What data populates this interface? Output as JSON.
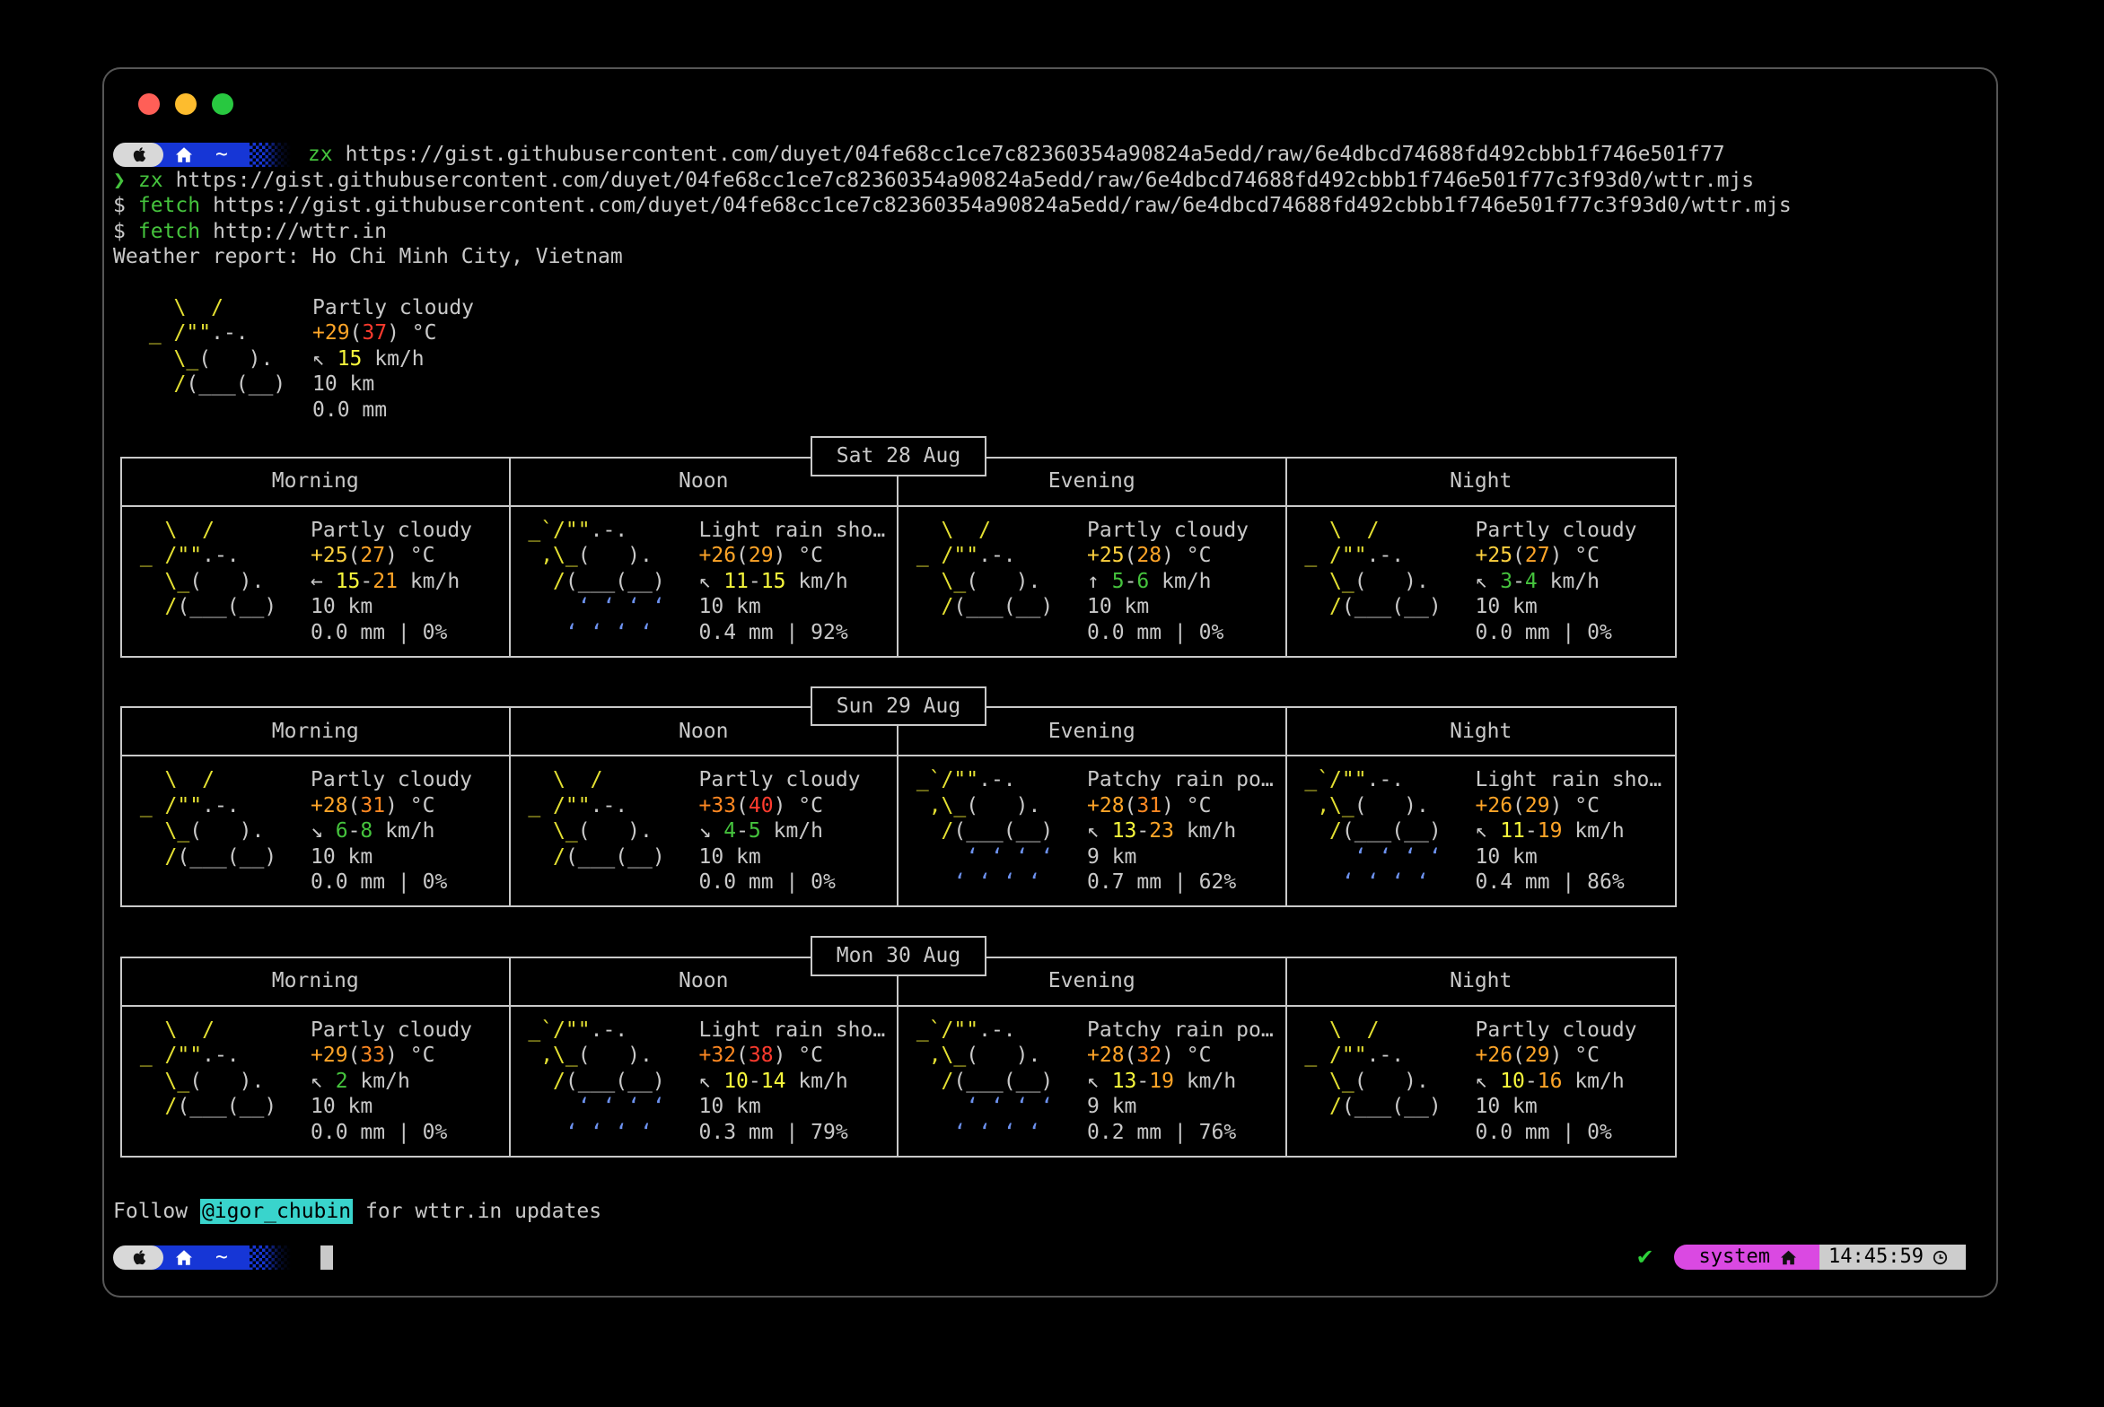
{
  "window": {
    "traffic_lights": [
      "close",
      "minimize",
      "zoom"
    ]
  },
  "prompt_bar": {
    "path_symbol": "~"
  },
  "commands": {
    "line1": {
      "cmd": "zx",
      "url": "https://gist.githubusercontent.com/duyet/04fe68cc1ce7c82360354a90824a5edd/raw/6e4dbcd74688fd492cbbb1f746e501f77"
    },
    "line2": {
      "prompt": "❯",
      "cmd": "zx",
      "url": "https://gist.githubusercontent.com/duyet/04fe68cc1ce7c82360354a90824a5edd/raw/6e4dbcd74688fd492cbbb1f746e501f77c3f93d0/wttr.mjs"
    },
    "line3": {
      "prompt": "$",
      "cmd": "fetch",
      "url": "https://gist.githubusercontent.com/duyet/04fe68cc1ce7c82360354a90824a5edd/raw/6e4dbcd74688fd492cbbb1f746e501f77c3f93d0/wttr.mjs"
    },
    "line4": {
      "prompt": "$",
      "cmd": "fetch",
      "url": "http://wttr.in"
    }
  },
  "report": {
    "header": "Weather report: Ho Chi Minh City, Vietnam",
    "current": {
      "art": "partly_cloudy",
      "condition": "Partly cloudy",
      "temp": [
        {
          "t": "+29",
          "c": "o"
        },
        {
          "t": "(",
          "c": "w"
        },
        {
          "t": "37",
          "c": "r"
        },
        {
          "t": ") °C",
          "c": "w"
        }
      ],
      "wind": [
        {
          "t": "↖ ",
          "c": "w"
        },
        {
          "t": "15",
          "c": "by"
        },
        {
          "t": " km/h",
          "c": "w"
        }
      ],
      "visibility": "10 km",
      "precip": "0.0 mm"
    },
    "periods": [
      "Morning",
      "Noon",
      "Evening",
      "Night"
    ],
    "days": [
      {
        "date": "Sat 28 Aug",
        "cells": [
          {
            "art": "partly_cloudy",
            "condition": "Partly cloudy",
            "temp": [
              {
                "t": "+25",
                "c": "gold"
              },
              {
                "t": "(",
                "c": "w"
              },
              {
                "t": "27",
                "c": "o"
              },
              {
                "t": ") °C",
                "c": "w"
              }
            ],
            "wind": [
              {
                "t": "← ",
                "c": "w"
              },
              {
                "t": "15",
                "c": "by"
              },
              {
                "t": "-",
                "c": "w"
              },
              {
                "t": "21",
                "c": "o"
              },
              {
                "t": " km/h",
                "c": "w"
              }
            ],
            "visibility": "10 km",
            "precip": "0.0 mm | 0%"
          },
          {
            "art": "rain_shower",
            "condition": "Light rain sho…",
            "temp": [
              {
                "t": "+26",
                "c": "o"
              },
              {
                "t": "(",
                "c": "w"
              },
              {
                "t": "29",
                "c": "o"
              },
              {
                "t": ") °C",
                "c": "w"
              }
            ],
            "wind": [
              {
                "t": "↖ ",
                "c": "w"
              },
              {
                "t": "11",
                "c": "by"
              },
              {
                "t": "-",
                "c": "w"
              },
              {
                "t": "15",
                "c": "by"
              },
              {
                "t": " km/h",
                "c": "w"
              }
            ],
            "visibility": "10 km",
            "precip": "0.4 mm | 92%"
          },
          {
            "art": "partly_cloudy",
            "condition": "Partly cloudy",
            "temp": [
              {
                "t": "+25",
                "c": "gold"
              },
              {
                "t": "(",
                "c": "w"
              },
              {
                "t": "28",
                "c": "o"
              },
              {
                "t": ") °C",
                "c": "w"
              }
            ],
            "wind": [
              {
                "t": "↑ ",
                "c": "w"
              },
              {
                "t": "5",
                "c": "g"
              },
              {
                "t": "-",
                "c": "w"
              },
              {
                "t": "6",
                "c": "g"
              },
              {
                "t": " km/h",
                "c": "w"
              }
            ],
            "visibility": "10 km",
            "precip": "0.0 mm | 0%"
          },
          {
            "art": "partly_cloudy",
            "condition": "Partly cloudy",
            "temp": [
              {
                "t": "+25",
                "c": "gold"
              },
              {
                "t": "(",
                "c": "w"
              },
              {
                "t": "27",
                "c": "o"
              },
              {
                "t": ") °C",
                "c": "w"
              }
            ],
            "wind": [
              {
                "t": "↖ ",
                "c": "w"
              },
              {
                "t": "3",
                "c": "g"
              },
              {
                "t": "-",
                "c": "w"
              },
              {
                "t": "4",
                "c": "g"
              },
              {
                "t": " km/h",
                "c": "w"
              }
            ],
            "visibility": "10 km",
            "precip": "0.0 mm | 0%"
          }
        ]
      },
      {
        "date": "Sun 29 Aug",
        "cells": [
          {
            "art": "partly_cloudy",
            "condition": "Partly cloudy",
            "temp": [
              {
                "t": "+28",
                "c": "o"
              },
              {
                "t": "(",
                "c": "w"
              },
              {
                "t": "31",
                "c": "do"
              },
              {
                "t": ") °C",
                "c": "w"
              }
            ],
            "wind": [
              {
                "t": "↘ ",
                "c": "w"
              },
              {
                "t": "6",
                "c": "g"
              },
              {
                "t": "-",
                "c": "w"
              },
              {
                "t": "8",
                "c": "g"
              },
              {
                "t": " km/h",
                "c": "w"
              }
            ],
            "visibility": "10 km",
            "precip": "0.0 mm | 0%"
          },
          {
            "art": "partly_cloudy",
            "condition": "Partly cloudy",
            "temp": [
              {
                "t": "+33",
                "c": "do"
              },
              {
                "t": "(",
                "c": "w"
              },
              {
                "t": "40",
                "c": "r"
              },
              {
                "t": ") °C",
                "c": "w"
              }
            ],
            "wind": [
              {
                "t": "↘ ",
                "c": "w"
              },
              {
                "t": "4",
                "c": "g"
              },
              {
                "t": "-",
                "c": "w"
              },
              {
                "t": "5",
                "c": "g"
              },
              {
                "t": " km/h",
                "c": "w"
              }
            ],
            "visibility": "10 km",
            "precip": "0.0 mm | 0%"
          },
          {
            "art": "rain_shower",
            "condition": "Patchy rain po…",
            "temp": [
              {
                "t": "+28",
                "c": "o"
              },
              {
                "t": "(",
                "c": "w"
              },
              {
                "t": "31",
                "c": "do"
              },
              {
                "t": ") °C",
                "c": "w"
              }
            ],
            "wind": [
              {
                "t": "↖ ",
                "c": "w"
              },
              {
                "t": "13",
                "c": "by"
              },
              {
                "t": "-",
                "c": "w"
              },
              {
                "t": "23",
                "c": "o"
              },
              {
                "t": " km/h",
                "c": "w"
              }
            ],
            "visibility": "9 km",
            "precip": "0.7 mm | 62%"
          },
          {
            "art": "rain_shower",
            "condition": "Light rain sho…",
            "temp": [
              {
                "t": "+26",
                "c": "o"
              },
              {
                "t": "(",
                "c": "w"
              },
              {
                "t": "29",
                "c": "o"
              },
              {
                "t": ") °C",
                "c": "w"
              }
            ],
            "wind": [
              {
                "t": "↖ ",
                "c": "w"
              },
              {
                "t": "11",
                "c": "by"
              },
              {
                "t": "-",
                "c": "w"
              },
              {
                "t": "19",
                "c": "o"
              },
              {
                "t": " km/h",
                "c": "w"
              }
            ],
            "visibility": "10 km",
            "precip": "0.4 mm | 86%"
          }
        ]
      },
      {
        "date": "Mon 30 Aug",
        "cells": [
          {
            "art": "partly_cloudy",
            "condition": "Partly cloudy",
            "temp": [
              {
                "t": "+29",
                "c": "o"
              },
              {
                "t": "(",
                "c": "w"
              },
              {
                "t": "33",
                "c": "do"
              },
              {
                "t": ") °C",
                "c": "w"
              }
            ],
            "wind": [
              {
                "t": "↖ ",
                "c": "w"
              },
              {
                "t": "2",
                "c": "g"
              },
              {
                "t": " km/h",
                "c": "w"
              }
            ],
            "visibility": "10 km",
            "precip": "0.0 mm | 0%"
          },
          {
            "art": "rain_shower",
            "condition": "Light rain sho…",
            "temp": [
              {
                "t": "+32",
                "c": "do"
              },
              {
                "t": "(",
                "c": "w"
              },
              {
                "t": "38",
                "c": "r"
              },
              {
                "t": ") °C",
                "c": "w"
              }
            ],
            "wind": [
              {
                "t": "↖ ",
                "c": "w"
              },
              {
                "t": "10",
                "c": "by"
              },
              {
                "t": "-",
                "c": "w"
              },
              {
                "t": "14",
                "c": "by"
              },
              {
                "t": " km/h",
                "c": "w"
              }
            ],
            "visibility": "10 km",
            "precip": "0.3 mm | 79%"
          },
          {
            "art": "rain_shower",
            "condition": "Patchy rain po…",
            "temp": [
              {
                "t": "+28",
                "c": "o"
              },
              {
                "t": "(",
                "c": "w"
              },
              {
                "t": "32",
                "c": "do"
              },
              {
                "t": ") °C",
                "c": "w"
              }
            ],
            "wind": [
              {
                "t": "↖ ",
                "c": "w"
              },
              {
                "t": "13",
                "c": "by"
              },
              {
                "t": "-",
                "c": "w"
              },
              {
                "t": "19",
                "c": "o"
              },
              {
                "t": " km/h",
                "c": "w"
              }
            ],
            "visibility": "9 km",
            "precip": "0.2 mm | 76%"
          },
          {
            "art": "partly_cloudy",
            "condition": "Partly cloudy",
            "temp": [
              {
                "t": "+26",
                "c": "o"
              },
              {
                "t": "(",
                "c": "w"
              },
              {
                "t": "29",
                "c": "o"
              },
              {
                "t": ") °C",
                "c": "w"
              }
            ],
            "wind": [
              {
                "t": "↖ ",
                "c": "w"
              },
              {
                "t": "10",
                "c": "by"
              },
              {
                "t": "-",
                "c": "w"
              },
              {
                "t": "16",
                "c": "o"
              },
              {
                "t": " km/h",
                "c": "w"
              }
            ],
            "visibility": "10 km",
            "precip": "0.0 mm | 0%"
          }
        ]
      }
    ],
    "footer": {
      "prefix": "Follow ",
      "handle": "@igor_chubin",
      "suffix": " for wttr.in updates"
    }
  },
  "status_bar": {
    "ok": "✔",
    "host": "system",
    "time": "14:45:59"
  },
  "ascii_art": {
    "partly_cloudy": [
      [
        {
          "t": "   \\  /",
          "c": "y"
        }
      ],
      [
        {
          "t": " _ /\"\"",
          "c": "y"
        },
        {
          "t": ".-.",
          "c": "w"
        }
      ],
      [
        {
          "t": "   \\_",
          "c": "y"
        },
        {
          "t": "(   ).",
          "c": "w"
        }
      ],
      [
        {
          "t": "   /",
          "c": "y"
        },
        {
          "t": "(___(__)",
          "c": "w"
        }
      ],
      []
    ],
    "rain_shower": [
      [
        {
          "t": " _`/\"\"",
          "c": "y"
        },
        {
          "t": ".-.",
          "c": "w"
        }
      ],
      [
        {
          "t": "  ,\\_",
          "c": "y"
        },
        {
          "t": "(   ).",
          "c": "w"
        }
      ],
      [
        {
          "t": "   /",
          "c": "y"
        },
        {
          "t": "(___(__)",
          "c": "w"
        }
      ],
      [
        {
          "t": "     ‘ ‘ ‘ ‘",
          "c": "b"
        }
      ],
      [
        {
          "t": "    ‘ ‘ ‘ ‘",
          "c": "b"
        }
      ]
    ]
  },
  "palette": {
    "foreground": "#c9c9c9",
    "command_green": "#45c33d",
    "art_yellow": "#e4e032",
    "wind_yellow": "#f7f73c",
    "temp_gold": "#fdd13f",
    "temp_orange": "#ffa528",
    "temp_deep_orange": "#ff8822",
    "temp_red": "#ff3b2e",
    "wind_green": "#45c33d",
    "rain_blue": "#6d92f0",
    "highlight_cyan": "#39d4cc",
    "prompt_blue": "#1636d6",
    "status_magenta": "#da49e2",
    "status_grey": "#cdcdcd",
    "traffic_red": "#ff5f57",
    "traffic_yellow": "#fdbc2e",
    "traffic_green": "#28c840"
  }
}
